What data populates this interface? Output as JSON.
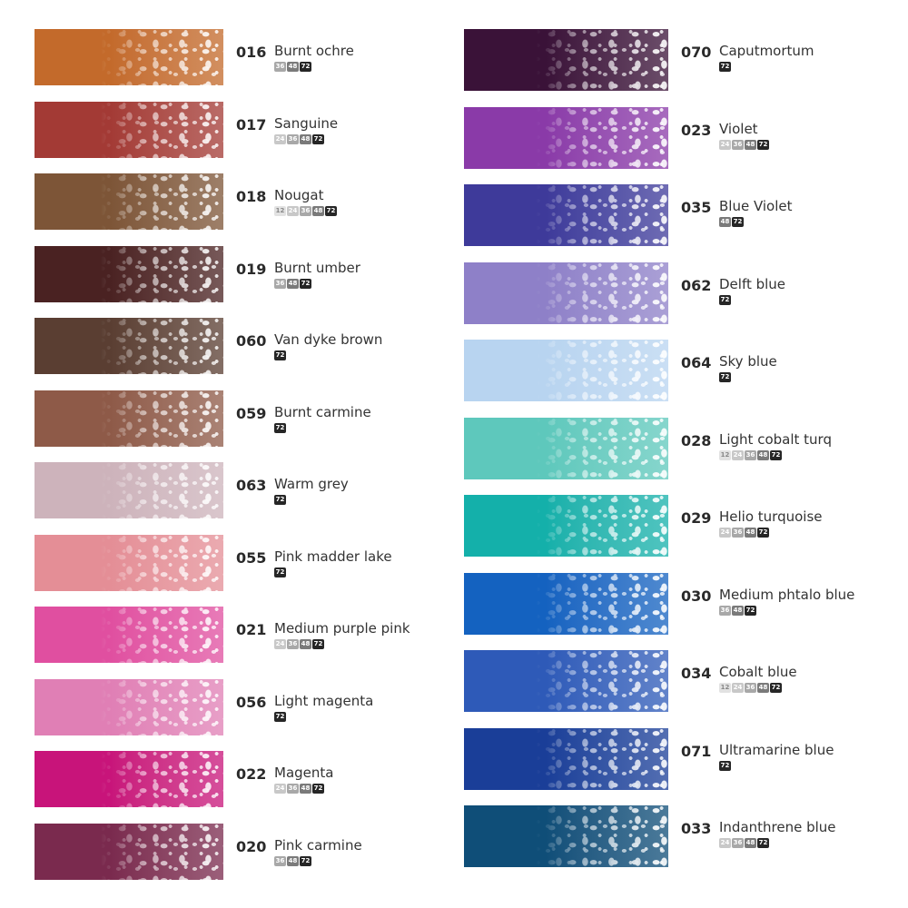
{
  "left_column": [
    {
      "code": "016",
      "name": "Burnt ochre",
      "color": "#c36a2b",
      "sizes": [
        "36",
        "48",
        "72"
      ]
    },
    {
      "code": "017",
      "name": "Sanguine",
      "color": "#a33a35",
      "sizes": [
        "24",
        "36",
        "48",
        "72"
      ]
    },
    {
      "code": "018",
      "name": "Nougat",
      "color": "#7d5537",
      "sizes": [
        "12",
        "24",
        "36",
        "48",
        "72"
      ]
    },
    {
      "code": "019",
      "name": "Burnt umber",
      "color": "#4a2222",
      "sizes": [
        "36",
        "48",
        "72"
      ]
    },
    {
      "code": "060",
      "name": "Van dyke brown",
      "color": "#5a3e32",
      "sizes": [
        "72"
      ]
    },
    {
      "code": "059",
      "name": "Burnt carmine",
      "color": "#8e5a48",
      "sizes": [
        "72"
      ]
    },
    {
      "code": "063",
      "name": "Warm grey",
      "color": "#cdb3bb",
      "sizes": [
        "72"
      ]
    },
    {
      "code": "055",
      "name": "Pink madder lake",
      "color": "#e48e96",
      "sizes": [
        "72"
      ]
    },
    {
      "code": "021",
      "name": "Medium purple pink",
      "color": "#e04fa0",
      "sizes": [
        "24",
        "36",
        "48",
        "72"
      ]
    },
    {
      "code": "056",
      "name": "Light magenta",
      "color": "#e07fb5",
      "sizes": [
        "72"
      ]
    },
    {
      "code": "022",
      "name": "Magenta",
      "color": "#c8147a",
      "sizes": [
        "24",
        "36",
        "48",
        "72"
      ]
    },
    {
      "code": "020",
      "name": "Pink carmine",
      "color": "#7a2a4e",
      "sizes": [
        "36",
        "48",
        "72"
      ]
    }
  ],
  "right_column": [
    {
      "code": "070",
      "name": "Caputmortum",
      "color": "#3a1238",
      "sizes": [
        "72"
      ]
    },
    {
      "code": "023",
      "name": "Violet",
      "color": "#8a3aa8",
      "sizes": [
        "24",
        "36",
        "48",
        "72"
      ]
    },
    {
      "code": "035",
      "name": "Blue Violet",
      "color": "#3e3a9a",
      "sizes": [
        "48",
        "72"
      ]
    },
    {
      "code": "062",
      "name": "Delft blue",
      "color": "#8e80c8",
      "sizes": [
        "72"
      ]
    },
    {
      "code": "064",
      "name": "Sky blue",
      "color": "#b8d4f0",
      "sizes": [
        "72"
      ]
    },
    {
      "code": "028",
      "name": "Light cobalt turq",
      "color": "#5ec8bc",
      "sizes": [
        "12",
        "24",
        "36",
        "48",
        "72"
      ]
    },
    {
      "code": "029",
      "name": "Helio turquoise",
      "color": "#14b0aa",
      "sizes": [
        "24",
        "36",
        "48",
        "72"
      ]
    },
    {
      "code": "030",
      "name": "Medium phtalo blue",
      "color": "#1462c0",
      "sizes": [
        "36",
        "48",
        "72"
      ]
    },
    {
      "code": "034",
      "name": "Cobalt blue",
      "color": "#2e5ab8",
      "sizes": [
        "12",
        "24",
        "36",
        "48",
        "72"
      ]
    },
    {
      "code": "071",
      "name": "Ultramarine blue",
      "color": "#1a3e98",
      "sizes": [
        "72"
      ]
    },
    {
      "code": "033",
      "name": "Indanthrene blue",
      "color": "#0f4e78",
      "sizes": [
        "24",
        "36",
        "48",
        "72"
      ]
    }
  ],
  "badge_colors": {
    "12": "#e2e2e2",
    "24": "#c8c8c8",
    "36": "#a8a8a8",
    "48": "#7a7a7a",
    "72": "#262626"
  }
}
